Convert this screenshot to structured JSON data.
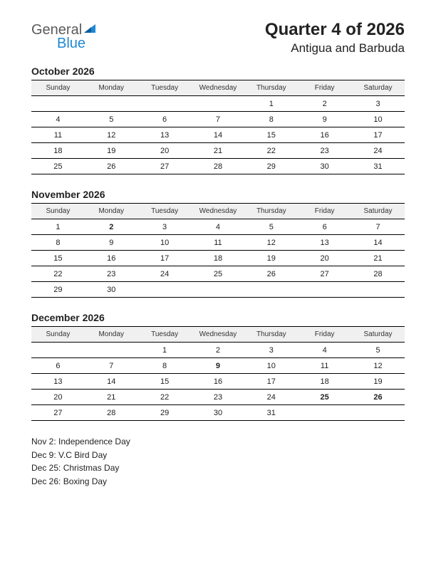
{
  "logo": {
    "word1": "General",
    "word2": "Blue",
    "color_general": "#5a5a5a",
    "color_blue": "#1e88d4",
    "triangle_color": "#1e88d4"
  },
  "header": {
    "title": "Quarter 4 of 2026",
    "subtitle": "Antigua and Barbuda"
  },
  "day_headers": [
    "Sunday",
    "Monday",
    "Tuesday",
    "Wednesday",
    "Thursday",
    "Friday",
    "Saturday"
  ],
  "colors": {
    "text": "#222222",
    "holiday": "#cc0000",
    "header_bg": "#f0f0f0",
    "border": "#000000",
    "background": "#ffffff"
  },
  "fonts": {
    "title_size_pt": 24,
    "subtitle_size_pt": 17,
    "month_title_size_pt": 14,
    "day_header_size_pt": 10,
    "cell_size_pt": 11,
    "holiday_list_size_pt": 12
  },
  "months": [
    {
      "title": "October 2026",
      "weeks": [
        [
          "",
          "",
          "",
          "",
          "1",
          "2",
          "3"
        ],
        [
          "4",
          "5",
          "6",
          "7",
          "8",
          "9",
          "10"
        ],
        [
          "11",
          "12",
          "13",
          "14",
          "15",
          "16",
          "17"
        ],
        [
          "18",
          "19",
          "20",
          "21",
          "22",
          "23",
          "24"
        ],
        [
          "25",
          "26",
          "27",
          "28",
          "29",
          "30",
          "31"
        ]
      ],
      "holidays": []
    },
    {
      "title": "November 2026",
      "weeks": [
        [
          "1",
          "2",
          "3",
          "4",
          "5",
          "6",
          "7"
        ],
        [
          "8",
          "9",
          "10",
          "11",
          "12",
          "13",
          "14"
        ],
        [
          "15",
          "16",
          "17",
          "18",
          "19",
          "20",
          "21"
        ],
        [
          "22",
          "23",
          "24",
          "25",
          "26",
          "27",
          "28"
        ],
        [
          "29",
          "30",
          "",
          "",
          "",
          "",
          ""
        ]
      ],
      "holidays": [
        "2"
      ]
    },
    {
      "title": "December 2026",
      "weeks": [
        [
          "",
          "",
          "1",
          "2",
          "3",
          "4",
          "5"
        ],
        [
          "6",
          "7",
          "8",
          "9",
          "10",
          "11",
          "12"
        ],
        [
          "13",
          "14",
          "15",
          "16",
          "17",
          "18",
          "19"
        ],
        [
          "20",
          "21",
          "22",
          "23",
          "24",
          "25",
          "26"
        ],
        [
          "27",
          "28",
          "29",
          "30",
          "31",
          "",
          ""
        ]
      ],
      "holidays": [
        "9",
        "25",
        "26"
      ]
    }
  ],
  "holiday_list": [
    "Nov 2: Independence Day",
    "Dec 9: V.C Bird Day",
    "Dec 25: Christmas Day",
    "Dec 26: Boxing Day"
  ]
}
